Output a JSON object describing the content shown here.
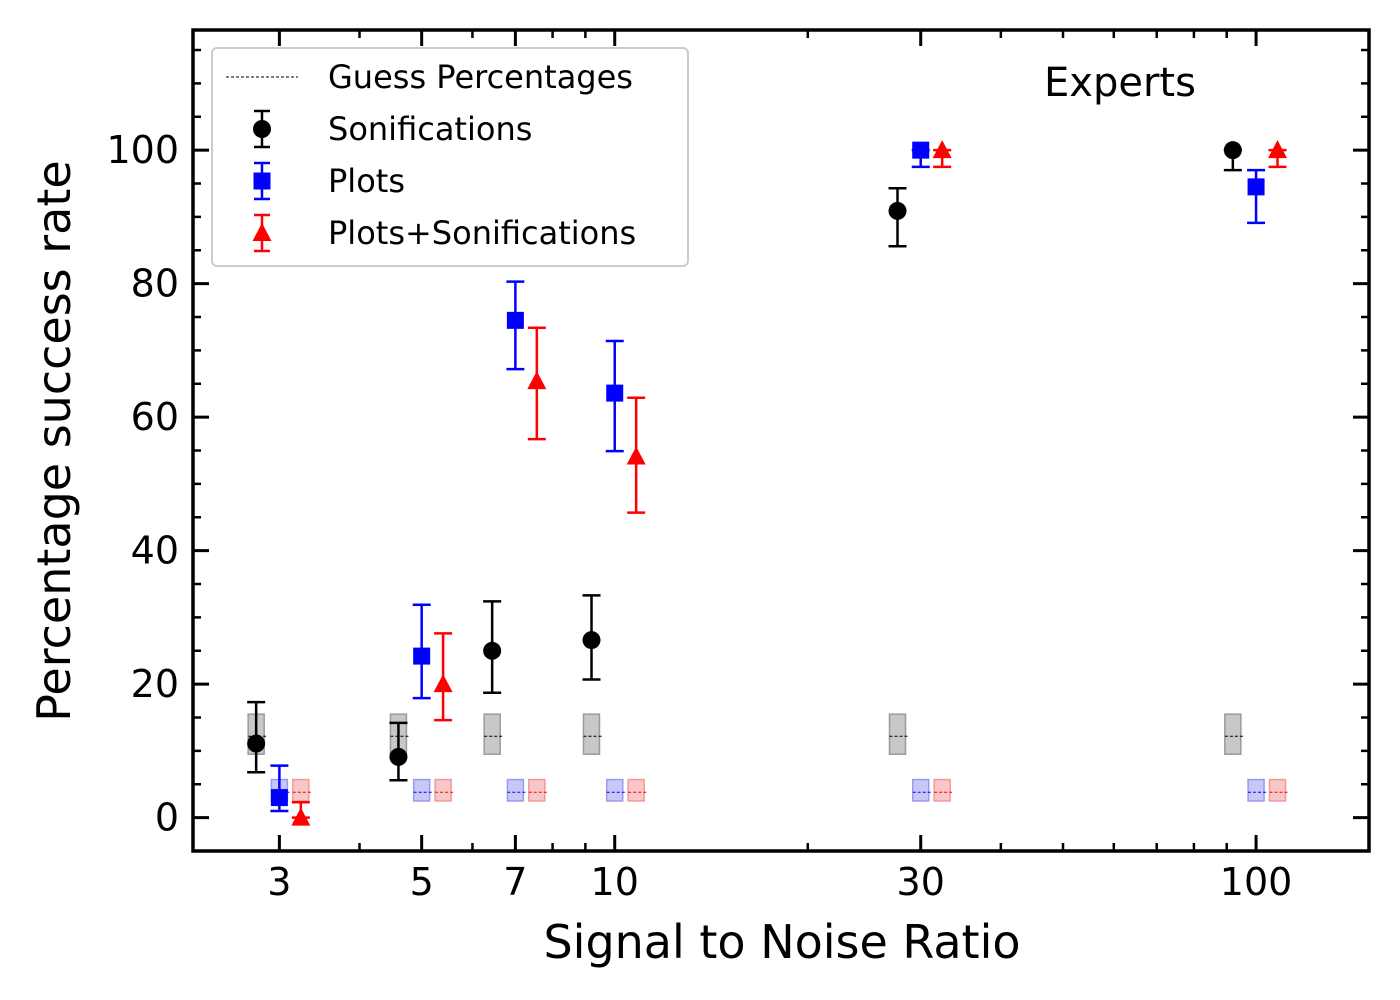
{
  "chart_data": {
    "type": "scatter",
    "title": "",
    "annotation": "Experts",
    "xlabel": "Signal to Noise Ratio",
    "ylabel": "Percentage success rate",
    "xscale": "log",
    "xlim": [
      2.2,
      150
    ],
    "ylim": [
      -5,
      118
    ],
    "xticks": [
      3,
      5,
      7,
      10,
      30,
      100
    ],
    "xtick_labels": [
      "3",
      "5",
      "7",
      "10",
      "30",
      "100"
    ],
    "yticks": [
      0,
      20,
      40,
      60,
      80,
      100
    ],
    "ytick_labels": [
      "0",
      "20",
      "40",
      "60",
      "80",
      "100"
    ],
    "legend_position": "upper-left",
    "grid": false,
    "x_categories": [
      3,
      5,
      7,
      10,
      30,
      100
    ],
    "series": [
      {
        "name": "Sonifications",
        "color": "#000000",
        "marker": "circle",
        "x_offset_factor": 0.92,
        "values": [
          11.1,
          9.1,
          25.0,
          26.6,
          90.9,
          100.0
        ],
        "err_low": [
          4.3,
          3.5,
          6.3,
          5.9,
          5.3,
          3.0
        ],
        "err_high": [
          6.2,
          5.1,
          7.4,
          6.7,
          3.4,
          0.0
        ]
      },
      {
        "name": "Plots",
        "color": "#0000ff",
        "marker": "square",
        "x_offset_factor": 1.0,
        "values": [
          3.0,
          24.2,
          74.5,
          63.6,
          100.0,
          94.5
        ],
        "err_low": [
          2.0,
          6.3,
          7.3,
          8.7,
          2.5,
          5.4
        ],
        "err_high": [
          4.8,
          7.7,
          5.8,
          7.8,
          0.0,
          2.5
        ]
      },
      {
        "name": "Plots+Sonifications",
        "color": "#ff0000",
        "marker": "triangle",
        "x_offset_factor": 1.08,
        "values": [
          0.0,
          20.0,
          65.4,
          54.1,
          100.0,
          100.0
        ],
        "err_low": [
          0.0,
          5.4,
          8.7,
          8.4,
          2.5,
          2.5
        ],
        "err_high": [
          2.3,
          7.6,
          8.0,
          8.8,
          0.0,
          0.0
        ]
      }
    ],
    "guess_percentages": {
      "name": "Guess Percentages",
      "series": [
        {
          "for": "Sonifications",
          "color": "#000000",
          "fill": "#c8c8c8",
          "edge": "#9a9a9a",
          "value": 12.2,
          "band": [
            9.5,
            15.5
          ]
        },
        {
          "for": "Plots",
          "color": "#0000ff",
          "fill": "#c8c8f8",
          "edge": "#9a9af0",
          "value": 3.8,
          "band": [
            2.5,
            5.7
          ]
        },
        {
          "for": "Plots+Sonifications",
          "color": "#ff0000",
          "fill": "#f8c8c8",
          "edge": "#f09a9a",
          "value": 3.8,
          "band": [
            2.5,
            5.7
          ]
        }
      ]
    }
  }
}
